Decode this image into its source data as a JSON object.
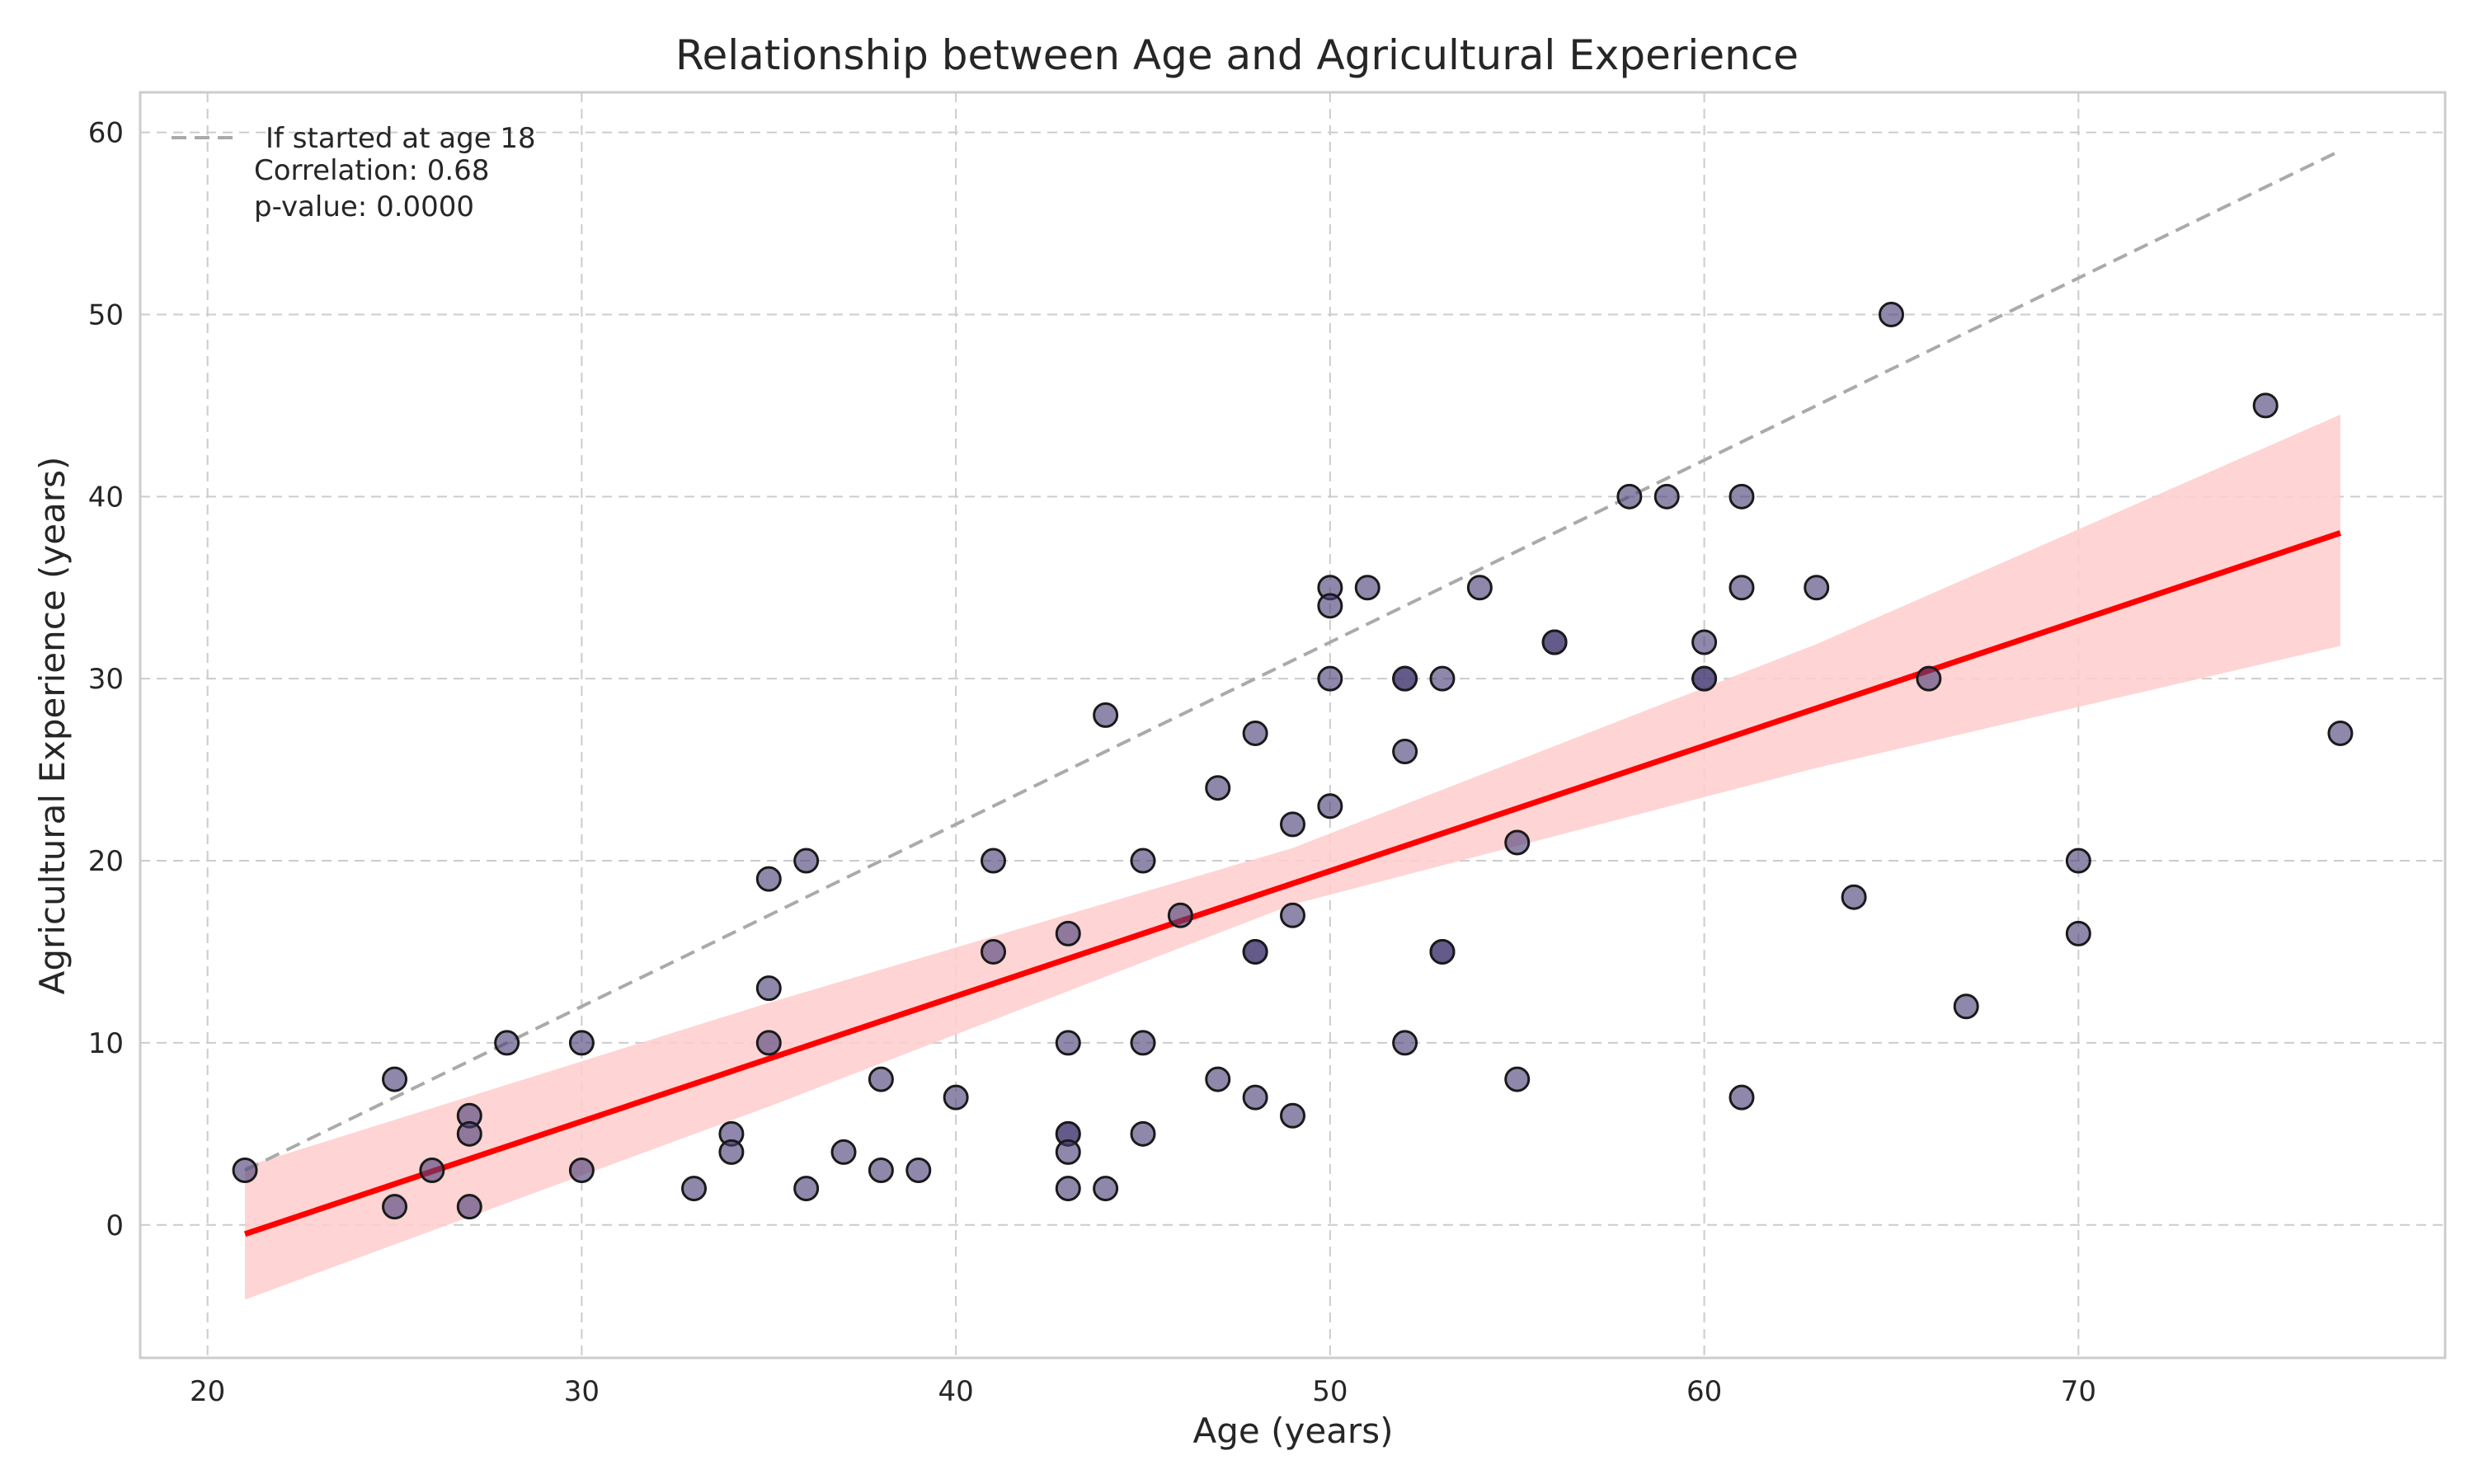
{
  "chart_data": {
    "type": "scatter",
    "title": "Relationship between Age and Agricultural Experience",
    "xlabel": "Age (years)",
    "ylabel": "Agricultural Experience (years)",
    "xlim": [
      18.2,
      79.8
    ],
    "ylim": [
      -7.3,
      62.2
    ],
    "xticks": [
      20,
      30,
      40,
      50,
      60,
      70
    ],
    "yticks": [
      0,
      10,
      20,
      30,
      40,
      50,
      60
    ],
    "grid": true,
    "legend_position": "top-left",
    "points": {
      "color": "#4a3f78",
      "x": [
        21,
        25,
        25,
        26,
        27,
        27,
        27,
        28,
        30,
        30,
        33,
        34,
        34,
        35,
        35,
        35,
        36,
        36,
        37,
        38,
        38,
        39,
        40,
        41,
        41,
        43,
        43,
        43,
        43,
        43,
        43,
        44,
        44,
        45,
        45,
        45,
        46,
        47,
        47,
        48,
        48,
        48,
        48,
        49,
        49,
        49,
        50,
        50,
        50,
        50,
        51,
        52,
        52,
        52,
        52,
        53,
        53,
        53,
        54,
        55,
        55,
        56,
        56,
        58,
        59,
        60,
        60,
        60,
        61,
        61,
        61,
        63,
        64,
        65,
        66,
        67,
        70,
        70,
        75,
        77
      ],
      "y": [
        3,
        8,
        1,
        3,
        6,
        5,
        1,
        10,
        10,
        3,
        2,
        5,
        4,
        19,
        13,
        10,
        20,
        2,
        4,
        8,
        3,
        3,
        7,
        20,
        15,
        16,
        10,
        5,
        5,
        4,
        2,
        28,
        2,
        20,
        10,
        5,
        17,
        24,
        8,
        27,
        15,
        15,
        7,
        22,
        17,
        6,
        35,
        34,
        30,
        23,
        35,
        30,
        30,
        26,
        10,
        30,
        15,
        15,
        35,
        21,
        8,
        32,
        32,
        40,
        40,
        32,
        30,
        30,
        40,
        35,
        7,
        35,
        18,
        50,
        30,
        12,
        20,
        16,
        45,
        27
      ]
    },
    "reference_line": {
      "label": "If started at age 18",
      "color": "#aaaaaa",
      "x": [
        21,
        77
      ],
      "y": [
        3,
        59
      ]
    },
    "regression": {
      "color": "#ff0000",
      "band_color": "#ffcccc",
      "x": [
        21,
        77
      ],
      "y": [
        -0.5,
        38
      ],
      "band_x": [
        21,
        35,
        49,
        63,
        77
      ],
      "band_upper": [
        3.2,
        12.2,
        20.7,
        31.9,
        44.5
      ],
      "band_lower": [
        -4.1,
        6.5,
        17.6,
        25.1,
        31.8
      ]
    },
    "annotations": {
      "correlation": "Correlation: 0.68",
      "pvalue": "p-value: 0.0000"
    }
  }
}
